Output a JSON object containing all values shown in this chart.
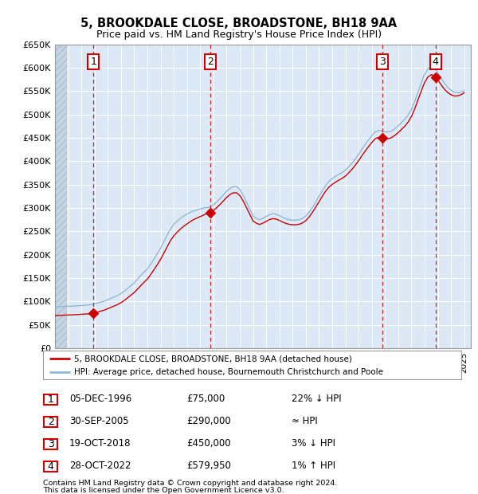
{
  "title": "5, BROOKDALE CLOSE, BROADSTONE, BH18 9AA",
  "subtitle": "Price paid vs. HM Land Registry's House Price Index (HPI)",
  "ylabel_ticks": [
    "£0",
    "£50K",
    "£100K",
    "£150K",
    "£200K",
    "£250K",
    "£300K",
    "£350K",
    "£400K",
    "£450K",
    "£500K",
    "£550K",
    "£600K",
    "£650K"
  ],
  "ylim": [
    0,
    650000
  ],
  "yticks": [
    0,
    50000,
    100000,
    150000,
    200000,
    250000,
    300000,
    350000,
    400000,
    450000,
    500000,
    550000,
    600000,
    650000
  ],
  "xmin": 1994.0,
  "xmax": 2025.5,
  "sales": [
    {
      "num": 1,
      "year": 1996.92,
      "price": 75000,
      "date": "05-DEC-1996",
      "rel": "22% ↓ HPI"
    },
    {
      "num": 2,
      "year": 2005.75,
      "price": 290000,
      "date": "30-SEP-2005",
      "rel": "≈ HPI"
    },
    {
      "num": 3,
      "year": 2018.79,
      "price": 450000,
      "date": "19-OCT-2018",
      "rel": "3% ↓ HPI"
    },
    {
      "num": 4,
      "year": 2022.82,
      "price": 579950,
      "date": "28-OCT-2022",
      "rel": "1% ↑ HPI"
    }
  ],
  "legend_line1": "5, BROOKDALE CLOSE, BROADSTONE, BH18 9AA (detached house)",
  "legend_line2": "HPI: Average price, detached house, Bournemouth Christchurch and Poole",
  "footnote1": "Contains HM Land Registry data © Crown copyright and database right 2024.",
  "footnote2": "This data is licensed under the Open Government Licence v3.0.",
  "red_color": "#cc0000",
  "blue_color": "#90b8d8",
  "plot_bg": "#dce8f5"
}
